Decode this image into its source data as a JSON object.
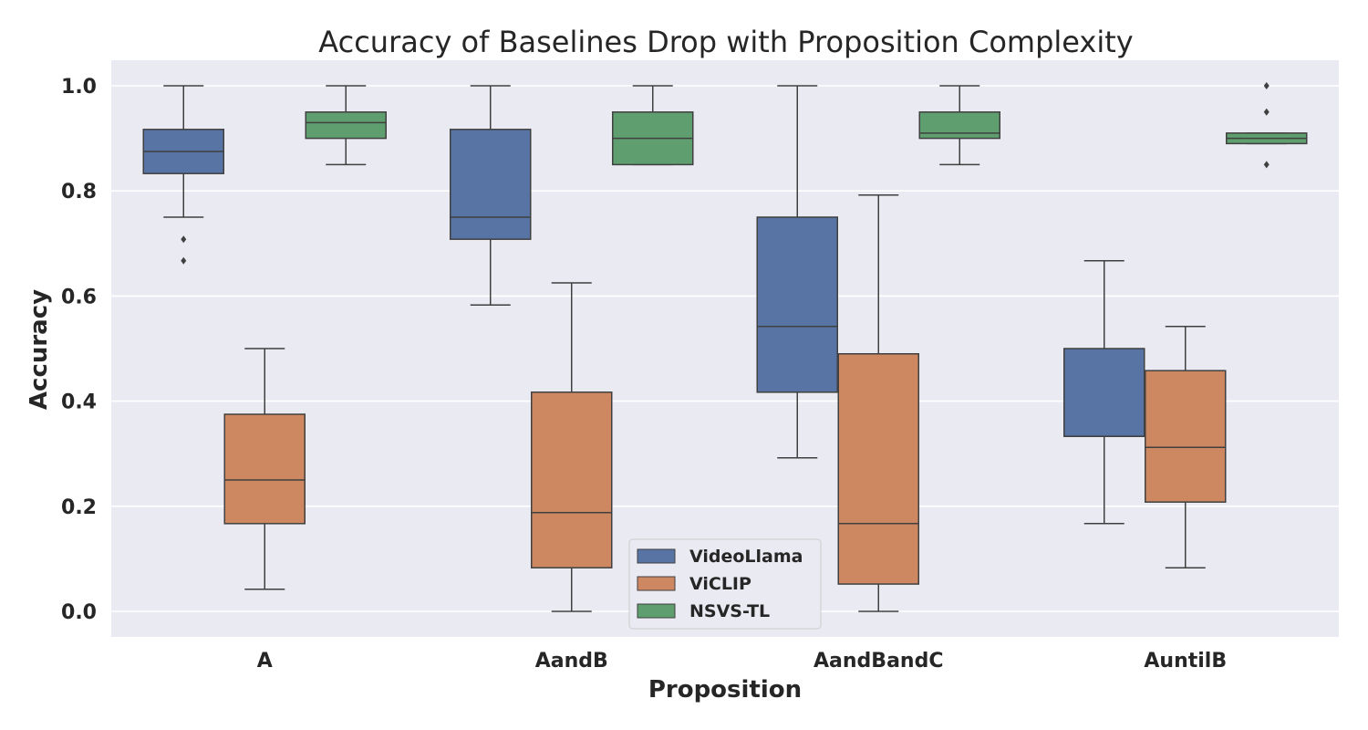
{
  "chart_data": {
    "type": "box",
    "title": "Accuracy of Baselines Drop with Proposition Complexity",
    "xlabel": "Proposition",
    "ylabel": "Accuracy",
    "ylim": [
      -0.05,
      1.05
    ],
    "yticks": [
      0.0,
      0.2,
      0.4,
      0.6,
      0.8,
      1.0
    ],
    "ytick_labels": [
      "0.0",
      "0.2",
      "0.4",
      "0.6",
      "0.8",
      "1.0"
    ],
    "categories": [
      "A",
      "AandB",
      "AandBandC",
      "AuntilB"
    ],
    "grid": true,
    "legend_position": "bottom-center",
    "background": "#eaeaf2",
    "series": [
      {
        "name": "VideoLlama",
        "color": "#5874a5",
        "boxes": [
          {
            "whisker_low": 0.75,
            "q1": 0.833,
            "median": 0.875,
            "q3": 0.917,
            "whisker_high": 1.0,
            "outliers": [
              0.708,
              0.667
            ]
          },
          {
            "whisker_low": 0.583,
            "q1": 0.708,
            "median": 0.75,
            "q3": 0.917,
            "whisker_high": 1.0,
            "outliers": []
          },
          {
            "whisker_low": 0.292,
            "q1": 0.417,
            "median": 0.542,
            "q3": 0.75,
            "whisker_high": 1.0,
            "outliers": []
          },
          {
            "whisker_low": 0.167,
            "q1": 0.333,
            "median": 0.333,
            "q3": 0.5,
            "whisker_high": 0.667,
            "outliers": []
          }
        ]
      },
      {
        "name": "ViCLIP",
        "color": "#cd8862",
        "boxes": [
          {
            "whisker_low": 0.042,
            "q1": 0.167,
            "median": 0.25,
            "q3": 0.375,
            "whisker_high": 0.5,
            "outliers": []
          },
          {
            "whisker_low": 0.0,
            "q1": 0.083,
            "median": 0.188,
            "q3": 0.417,
            "whisker_high": 0.625,
            "outliers": []
          },
          {
            "whisker_low": 0.0,
            "q1": 0.052,
            "median": 0.167,
            "q3": 0.49,
            "whisker_high": 0.792,
            "outliers": []
          },
          {
            "whisker_low": 0.083,
            "q1": 0.208,
            "median": 0.312,
            "q3": 0.458,
            "whisker_high": 0.542,
            "outliers": []
          }
        ]
      },
      {
        "name": "NSVS-TL",
        "color": "#5f9e6e",
        "boxes": [
          {
            "whisker_low": 0.85,
            "q1": 0.9,
            "median": 0.93,
            "q3": 0.95,
            "whisker_high": 1.0,
            "outliers": []
          },
          {
            "whisker_low": 0.85,
            "q1": 0.85,
            "median": 0.9,
            "q3": 0.95,
            "whisker_high": 1.0,
            "outliers": []
          },
          {
            "whisker_low": 0.85,
            "q1": 0.9,
            "median": 0.91,
            "q3": 0.95,
            "whisker_high": 1.0,
            "outliers": []
          },
          {
            "whisker_low": 0.89,
            "q1": 0.89,
            "median": 0.9,
            "q3": 0.91,
            "whisker_high": 0.91,
            "outliers": [
              1.0,
              0.95,
              0.85
            ]
          }
        ]
      }
    ]
  }
}
